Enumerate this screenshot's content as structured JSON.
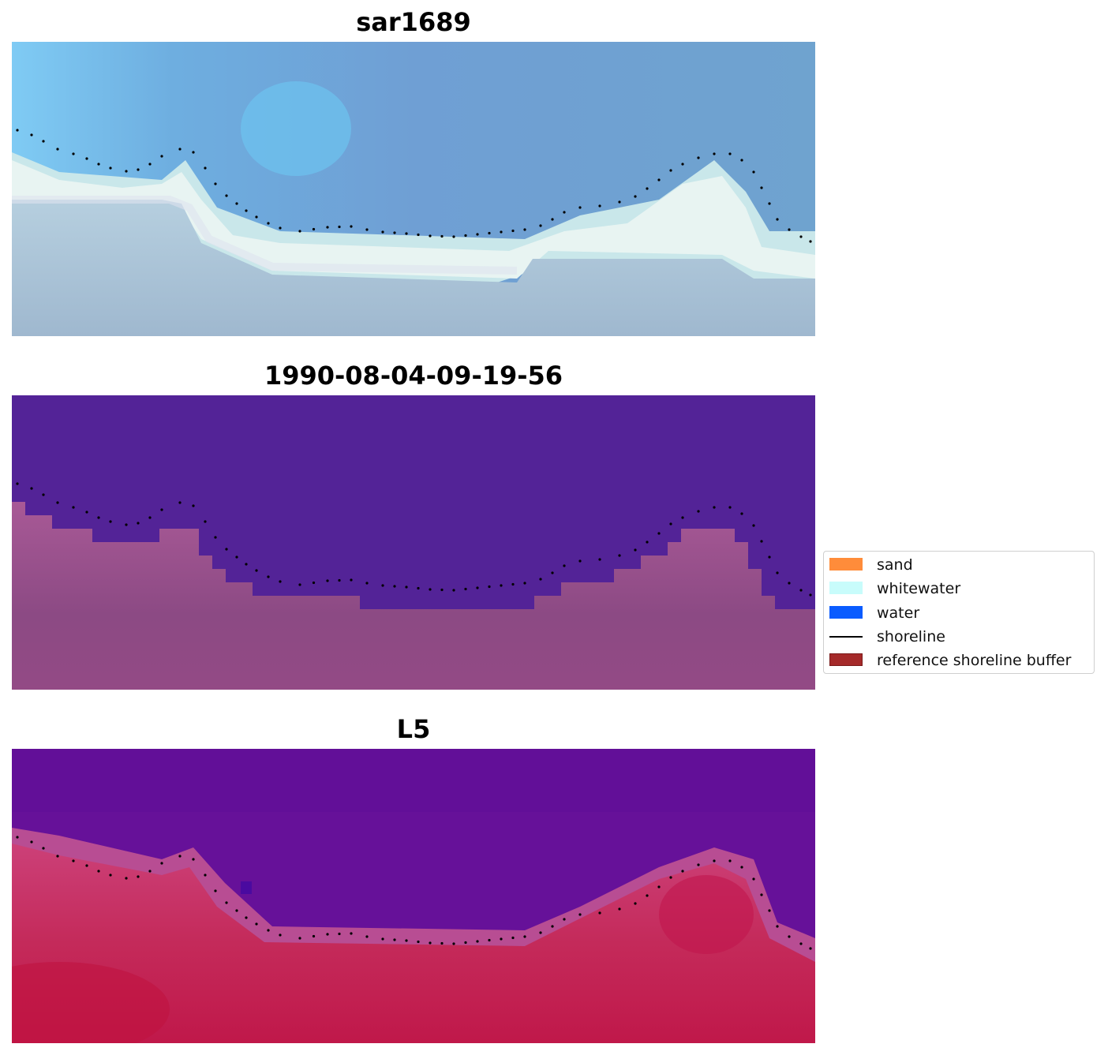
{
  "panels": [
    {
      "title": "sar1689"
    },
    {
      "title": "1990-08-04-09-19-56"
    },
    {
      "title": "L5"
    }
  ],
  "legend": {
    "items": [
      {
        "label": "sand",
        "color": "#ff8c3a",
        "kind": "patch"
      },
      {
        "label": "whitewater",
        "color": "#c8fcfb",
        "kind": "patch"
      },
      {
        "label": "water",
        "color": "#0a5cff",
        "kind": "patch"
      },
      {
        "label": "shoreline",
        "color": "#000000",
        "kind": "line"
      },
      {
        "label": "reference shoreline buffer",
        "color": "#a52a2a",
        "kind": "patch"
      }
    ]
  }
}
